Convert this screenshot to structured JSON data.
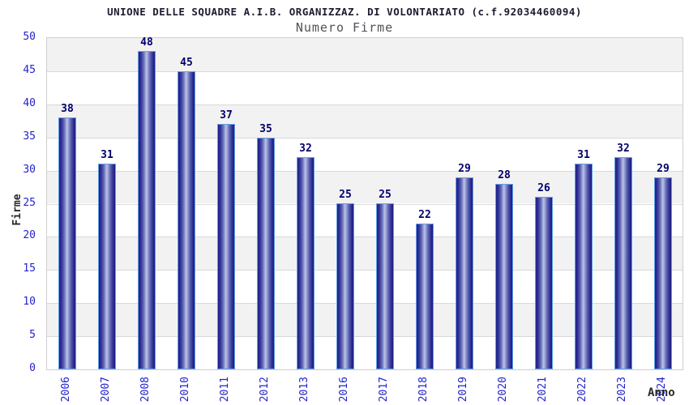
{
  "chart_data": {
    "type": "bar",
    "title": "UNIONE DELLE SQUADRE A.I.B. ORGANIZZAZ. DI VOLONTARIATO (c.f.92034460094)",
    "subtitle": "Numero Firme",
    "xlabel": "Anno",
    "ylabel": "Firme",
    "categories": [
      "2006",
      "2007",
      "2008",
      "2010",
      "2011",
      "2012",
      "2013",
      "2016",
      "2017",
      "2018",
      "2019",
      "2020",
      "2021",
      "2022",
      "2023",
      "2024"
    ],
    "values": [
      38,
      31,
      48,
      45,
      37,
      35,
      32,
      25,
      25,
      22,
      29,
      28,
      26,
      31,
      32,
      29
    ],
    "ylim": [
      0,
      50
    ],
    "yticks": [
      0,
      5,
      10,
      15,
      20,
      25,
      30,
      35,
      40,
      45,
      50
    ],
    "grid": true,
    "legend": "none",
    "bands": "alternating horizontal 5-unit bands"
  },
  "colors": {
    "tick_label": "#2323cd",
    "value_label": "#00006b",
    "title": "#1c1c30",
    "subtitle": "#515158",
    "axis_title": "#29292c",
    "bar_edge_dark": "#20208a",
    "bar_highlight": "#bdc4ea",
    "bar_border": "#62a0e4",
    "band_gray": "#f2f2f2",
    "band_white": "#ffffff",
    "gridline": "#d9d9d9",
    "plot_border": "#cfcfcf"
  }
}
